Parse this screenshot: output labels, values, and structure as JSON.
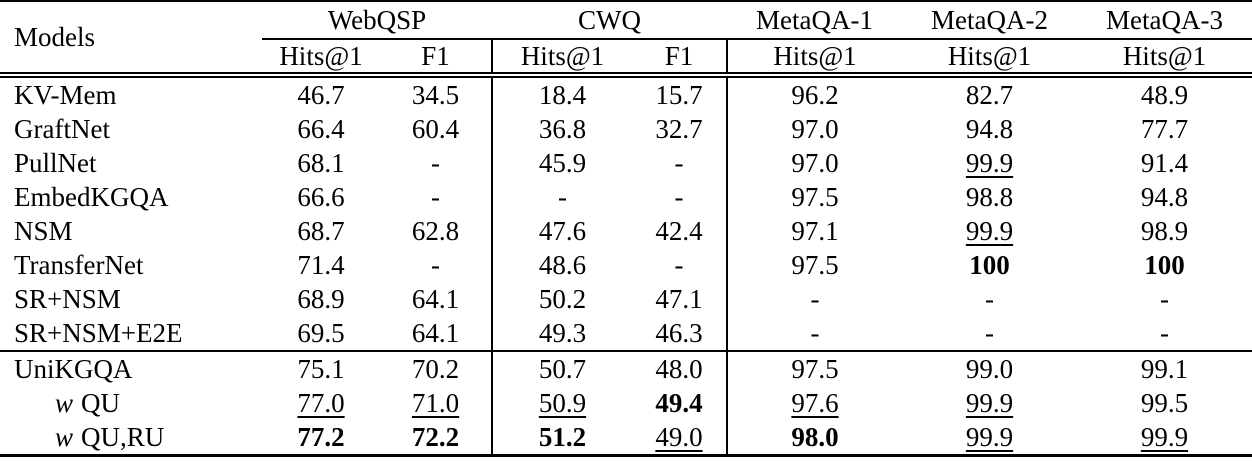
{
  "header": {
    "models": "Models",
    "groups": [
      {
        "label": "WebQSP"
      },
      {
        "label": "CWQ"
      },
      {
        "label": "MetaQA-1"
      },
      {
        "label": "MetaQA-2"
      },
      {
        "label": "MetaQA-3"
      }
    ],
    "sub": [
      "Hits@1",
      "F1",
      "Hits@1",
      "F1",
      "Hits@1",
      "Hits@1",
      "Hits@1"
    ]
  },
  "rows": [
    {
      "prefix": "",
      "name": "KV-Mem",
      "cells": [
        "46.7",
        "34.5",
        "18.4",
        "15.7",
        "96.2",
        "82.7",
        "48.9"
      ],
      "styles": [
        "",
        "",
        "",
        "",
        "",
        "",
        ""
      ]
    },
    {
      "prefix": "",
      "name": "GraftNet",
      "cells": [
        "66.4",
        "60.4",
        "36.8",
        "32.7",
        "97.0",
        "94.8",
        "77.7"
      ],
      "styles": [
        "",
        "",
        "",
        "",
        "",
        "",
        ""
      ]
    },
    {
      "prefix": "",
      "name": "PullNet",
      "cells": [
        "68.1",
        "-",
        "45.9",
        "-",
        "97.0",
        "99.9",
        "91.4"
      ],
      "styles": [
        "",
        "",
        "",
        "",
        "",
        "u",
        ""
      ]
    },
    {
      "prefix": "",
      "name": "EmbedKGQA",
      "cells": [
        "66.6",
        "-",
        "-",
        "-",
        "97.5",
        "98.8",
        "94.8"
      ],
      "styles": [
        "",
        "",
        "",
        "",
        "",
        "",
        ""
      ]
    },
    {
      "prefix": "",
      "name": "NSM",
      "cells": [
        "68.7",
        "62.8",
        "47.6",
        "42.4",
        "97.1",
        "99.9",
        "98.9"
      ],
      "styles": [
        "",
        "",
        "",
        "",
        "",
        "u",
        ""
      ]
    },
    {
      "prefix": "",
      "name": "TransferNet",
      "cells": [
        "71.4",
        "-",
        "48.6",
        "-",
        "97.5",
        "100",
        "100"
      ],
      "styles": [
        "",
        "",
        "",
        "",
        "",
        "b",
        "b"
      ]
    },
    {
      "prefix": "",
      "name": "SR+NSM",
      "cells": [
        "68.9",
        "64.1",
        "50.2",
        "47.1",
        "-",
        "-",
        "-"
      ],
      "styles": [
        "",
        "",
        "",
        "",
        "",
        "",
        ""
      ]
    },
    {
      "prefix": "",
      "name": "SR+NSM+E2E",
      "cells": [
        "69.5",
        "64.1",
        "49.3",
        "46.3",
        "-",
        "-",
        "-"
      ],
      "styles": [
        "",
        "",
        "",
        "",
        "",
        "",
        ""
      ]
    },
    {
      "prefix": "",
      "name": "UniKGQA",
      "cells": [
        "75.1",
        "70.2",
        "50.7",
        "48.0",
        "97.5",
        "99.0",
        "99.1"
      ],
      "styles": [
        "",
        "",
        "",
        "",
        "",
        "",
        ""
      ]
    },
    {
      "prefix": "w",
      "name": "QU",
      "cells": [
        "77.0",
        "71.0",
        "50.9",
        "49.4",
        "97.6",
        "99.9",
        "99.5"
      ],
      "styles": [
        "u",
        "u",
        "u",
        "b",
        "u",
        "u",
        ""
      ]
    },
    {
      "prefix": "w",
      "name": "QU,RU",
      "cells": [
        "77.2",
        "72.2",
        "51.2",
        "49.0",
        "98.0",
        "99.9",
        "99.9"
      ],
      "styles": [
        "b",
        "b",
        "b",
        "u",
        "b",
        "u",
        "u"
      ]
    }
  ]
}
